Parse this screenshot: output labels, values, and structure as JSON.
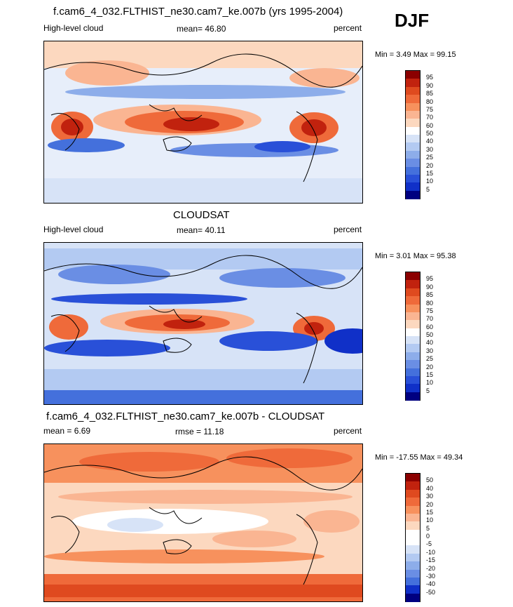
{
  "season": "DJF",
  "panels": [
    {
      "title": "f.cam6_4_032.FLTHIST_ne30.cam7_ke.007b (yrs 1995-2004)",
      "left_label": "High-level cloud",
      "center_label": "mean=  46.80",
      "right_label": "percent",
      "minmax": "Min =   3.49 Max =  99.15",
      "colorbar_labels": [
        "95",
        "90",
        "85",
        "80",
        "75",
        "70",
        "60",
        "50",
        "40",
        "30",
        "25",
        "20",
        "15",
        "10",
        "5"
      ],
      "colorbar_colors": [
        "#8b0000",
        "#c1220e",
        "#df4a1f",
        "#ef6a3a",
        "#f7915d",
        "#fab592",
        "#fcd8bf",
        "#ffffff",
        "#d7e3f7",
        "#b3caf2",
        "#8dadea",
        "#6a8ee4",
        "#4470dc",
        "#2950d8",
        "#1030c8",
        "#000080"
      ]
    },
    {
      "title": "CLOUDSAT",
      "left_label": "High-level cloud",
      "center_label": "mean=  40.11",
      "right_label": "percent",
      "minmax": "Min =   3.01 Max =  95.38",
      "colorbar_labels": [
        "95",
        "90",
        "85",
        "80",
        "75",
        "70",
        "60",
        "50",
        "40",
        "30",
        "25",
        "20",
        "15",
        "10",
        "5"
      ],
      "colorbar_colors": [
        "#8b0000",
        "#c1220e",
        "#df4a1f",
        "#ef6a3a",
        "#f7915d",
        "#fab592",
        "#fcd8bf",
        "#ffffff",
        "#d7e3f7",
        "#b3caf2",
        "#8dadea",
        "#6a8ee4",
        "#4470dc",
        "#2950d8",
        "#1030c8",
        "#000080"
      ]
    },
    {
      "title": "f.cam6_4_032.FLTHIST_ne30.cam7_ke.007b - CLOUDSAT",
      "left_label": "mean =   6.69",
      "center_label": "rmse =  11.18",
      "right_label": "percent",
      "minmax": "Min = -17.55 Max =  49.34",
      "colorbar_labels": [
        "50",
        "40",
        "30",
        "20",
        "15",
        "10",
        "5",
        "0",
        "-5",
        "-10",
        "-15",
        "-20",
        "-30",
        "-40",
        "-50"
      ],
      "colorbar_colors": [
        "#8b0000",
        "#c1220e",
        "#df4a1f",
        "#ef6a3a",
        "#f7915d",
        "#fab592",
        "#fcd8bf",
        "#ffffff",
        "#ffffff",
        "#d7e3f7",
        "#b3caf2",
        "#8dadea",
        "#6a8ee4",
        "#4470dc",
        "#1030c8",
        "#000080"
      ]
    }
  ]
}
